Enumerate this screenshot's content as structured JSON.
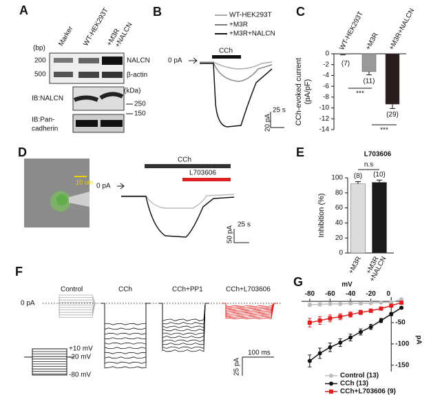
{
  "panel_labels": [
    "A",
    "B",
    "C",
    "D",
    "E",
    "F",
    "G"
  ],
  "panel_a": {
    "lanes": [
      "Marker",
      "WT-HEK293T",
      [
        "+M3R",
        "+NALCN"
      ]
    ],
    "bp_label": "(bp)",
    "bp_markers": [
      "200",
      "500"
    ],
    "bands": [
      "NALCN",
      "β-actin"
    ],
    "ib_nalcn": "IB:NALCN",
    "kda_label": "(kDa)",
    "kda_markers": [
      "250",
      "150"
    ],
    "ib_cadherin": [
      "IB:Pan-",
      "cadherin"
    ]
  },
  "panel_b": {
    "legend": [
      "WT-HEK293T",
      "+M3R",
      "+M3R+NALCN"
    ],
    "zero": "0 pA",
    "drug": "CCh",
    "time_scale": "25 s",
    "current_scale": "20 pA"
  },
  "panel_d": {
    "scale": "10 um",
    "zero": "0 pA",
    "drugs": [
      "CCh",
      "L703606"
    ],
    "time_scale": "25 s",
    "current_scale": "50 pA"
  },
  "panel_f": {
    "conditions": [
      "Control",
      "CCh",
      "CCh+PP1",
      "CCh+L703606"
    ],
    "zero": "0 pA",
    "voltages": [
      "+10 mV",
      "-20 mV",
      "-80 mV"
    ],
    "time_scale": "100 ms",
    "current_scale": "25 pA"
  },
  "chart_data": [
    {
      "type": "bar",
      "categories": [
        "WT-HEK293T",
        "+M3R",
        "+M3R+NALCN"
      ],
      "values": [
        -0.1,
        -3.3,
        -9.3
      ],
      "errors": [
        0.1,
        0.6,
        0.8
      ],
      "colors": [
        "#c8c8c8",
        "#9a9a9a",
        "#2a1d1d"
      ],
      "n_labels": [
        "(7)",
        "(11)",
        "(29)"
      ],
      "significance": [
        "***",
        "***"
      ],
      "ylabel": [
        "CCh-evoked current",
        "(pA/pF)"
      ],
      "ylim": [
        -14,
        0
      ],
      "yticks": [
        0,
        -2,
        -4,
        -6,
        -8,
        -10,
        -12,
        -14
      ]
    },
    {
      "type": "bar",
      "title": "L703606",
      "title_color": "#e02020",
      "categories": [
        "+M3R",
        [
          "+M3R",
          "+NALCN"
        ]
      ],
      "values": [
        92,
        94
      ],
      "errors": [
        3,
        3
      ],
      "colors": [
        "#dcdcdc",
        "#1a1a1a"
      ],
      "n_labels": [
        "(8)",
        "(10)"
      ],
      "significance": [
        "n.s"
      ],
      "ylabel": [
        "Inhibition (%)"
      ],
      "ylim": [
        0,
        100
      ],
      "yticks": [
        0,
        20,
        40,
        60,
        80,
        100
      ]
    },
    {
      "type": "line",
      "x": [
        -80,
        -70,
        -60,
        -50,
        -40,
        -30,
        -20,
        -10,
        0,
        10
      ],
      "xlabel": "mV",
      "ylabel": "pA",
      "xlim": [
        -88,
        12
      ],
      "ylim": [
        -165,
        10
      ],
      "xticks": [
        -80,
        -60,
        -40,
        -20,
        0
      ],
      "yticks": [
        -50,
        -100,
        -150
      ],
      "series": [
        {
          "name": "Control (13)",
          "color": "#bdbdbd",
          "marker": "circle",
          "values": [
            -8,
            -7,
            -6,
            -6,
            -5,
            -5,
            -4,
            -3,
            -2,
            5
          ],
          "errors": [
            4,
            4,
            3,
            3,
            3,
            3,
            3,
            2,
            2,
            2
          ]
        },
        {
          "name": "CCh (13)",
          "color": "#111111",
          "marker": "circle",
          "values": [
            -140,
            -122,
            -108,
            -97,
            -85,
            -72,
            -60,
            -45,
            -30,
            -15
          ],
          "errors": [
            14,
            12,
            10,
            9,
            8,
            7,
            6,
            5,
            4,
            3
          ]
        },
        {
          "name": "CCh+L703606 (9)",
          "color": "#e02020",
          "marker": "square",
          "values": [
            -50,
            -45,
            -40,
            -36,
            -31,
            -26,
            -22,
            -17,
            -10,
            -3
          ],
          "errors": [
            10,
            9,
            8,
            7,
            6,
            5,
            4,
            3,
            3,
            2
          ]
        }
      ]
    }
  ]
}
